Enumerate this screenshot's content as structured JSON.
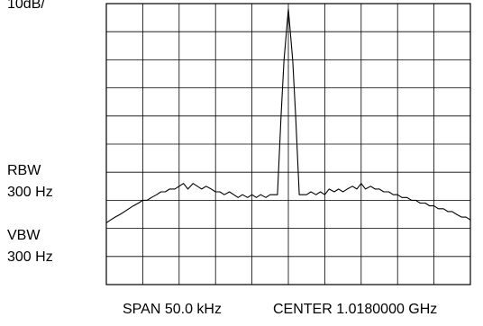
{
  "chart_data": {
    "type": "line",
    "x_span_label": "SPAN 50.0 kHz",
    "x_center_label": "CENTER 1.0180000 GHz",
    "y_scale_label": "10dB/",
    "grid": true,
    "grid_divisions": {
      "x": 10,
      "y": 10
    },
    "xlim": [
      -25.0,
      25.0
    ],
    "ylim": [
      -100,
      0
    ],
    "annotations": {
      "rbw_label": "RBW",
      "rbw_value": "300 Hz",
      "vbw_label": "VBW",
      "vbw_value": "300 Hz"
    },
    "series": [
      {
        "x": [
          -25.0,
          -24.4,
          -23.8,
          -23.1,
          -22.5,
          -21.9,
          -21.3,
          -20.6,
          -20.0,
          -19.4,
          -18.8,
          -18.1,
          -17.5,
          -16.9,
          -16.3,
          -15.6,
          -15.0,
          -14.4,
          -13.8,
          -13.1,
          -12.5,
          -11.9,
          -11.3,
          -10.6,
          -10.0,
          -9.4,
          -8.8,
          -8.1,
          -7.5,
          -6.9,
          -6.3,
          -5.6,
          -5.0,
          -4.4,
          -3.8,
          -3.1,
          -2.5,
          -2.0,
          -1.5,
          -1.0,
          -0.6,
          0.0,
          0.6,
          1.0,
          1.5,
          2.0,
          2.5,
          3.1,
          3.8,
          4.4,
          5.0,
          5.6,
          6.3,
          6.9,
          7.5,
          8.1,
          8.8,
          9.4,
          10.0,
          10.6,
          11.3,
          11.9,
          12.5,
          13.1,
          13.8,
          14.4,
          15.0,
          15.6,
          16.3,
          16.9,
          17.5,
          18.1,
          18.8,
          19.4,
          20.0,
          20.6,
          21.3,
          21.9,
          22.5,
          23.1,
          23.8,
          24.4,
          25.0
        ],
        "y": [
          -78,
          -77,
          -76,
          -75,
          -74,
          -73,
          -72,
          -71,
          -70,
          -70,
          -69,
          -68,
          -67,
          -67,
          -66,
          -66,
          -65,
          -64,
          -66,
          -64,
          -65,
          -66,
          -65,
          -66,
          -67,
          -67,
          -68,
          -67,
          -68,
          -69,
          -68,
          -69,
          -68,
          -69,
          -68,
          -69,
          -68,
          -68,
          -68,
          -40,
          -20,
          -2,
          -20,
          -40,
          -68,
          -68,
          -68,
          -67,
          -68,
          -67,
          -68,
          -66,
          -67,
          -66,
          -67,
          -66,
          -65,
          -66,
          -64,
          -66,
          -65,
          -66,
          -66,
          -67,
          -67,
          -68,
          -68,
          -69,
          -69,
          -70,
          -70,
          -71,
          -71,
          -72,
          -72,
          -73,
          -73,
          -74,
          -74,
          -75,
          -76,
          -76,
          -77
        ]
      }
    ]
  }
}
